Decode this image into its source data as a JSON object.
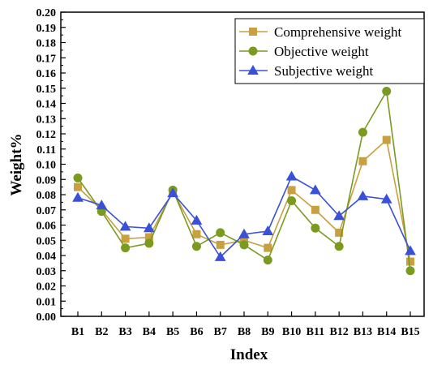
{
  "chart_data": {
    "type": "line",
    "title": "",
    "xlabel": "Index",
    "ylabel": "Weight%",
    "categories": [
      "B1",
      "B2",
      "B3",
      "B4",
      "B5",
      "B6",
      "B7",
      "B8",
      "B9",
      "B10",
      "B11",
      "B12",
      "B13",
      "B14",
      "B15"
    ],
    "ylim": [
      0,
      0.2
    ],
    "yticks": [
      "0.00",
      "0.01",
      "0.02",
      "0.03",
      "0.04",
      "0.05",
      "0.06",
      "0.07",
      "0.08",
      "0.09",
      "0.10",
      "0.11",
      "0.12",
      "0.13",
      "0.14",
      "0.15",
      "0.16",
      "0.17",
      "0.18",
      "0.19",
      "0.20"
    ],
    "grid": false,
    "legend_position": "top-right",
    "series": [
      {
        "name": "Comprehensive weight",
        "marker": "square",
        "color": "#c8a040",
        "values": [
          0.085,
          0.07,
          0.051,
          0.052,
          0.082,
          0.054,
          0.047,
          0.05,
          0.045,
          0.083,
          0.07,
          0.055,
          0.102,
          0.116,
          0.036
        ]
      },
      {
        "name": "Objective weight",
        "marker": "circle",
        "color": "#7a9a20",
        "values": [
          0.091,
          0.069,
          0.045,
          0.048,
          0.083,
          0.046,
          0.055,
          0.047,
          0.037,
          0.076,
          0.058,
          0.046,
          0.121,
          0.148,
          0.03
        ]
      },
      {
        "name": "Subjective weight",
        "marker": "triangle",
        "color": "#3a50d8",
        "values": [
          0.078,
          0.073,
          0.059,
          0.058,
          0.081,
          0.063,
          0.039,
          0.054,
          0.056,
          0.092,
          0.083,
          0.066,
          0.079,
          0.077,
          0.043
        ]
      }
    ]
  }
}
